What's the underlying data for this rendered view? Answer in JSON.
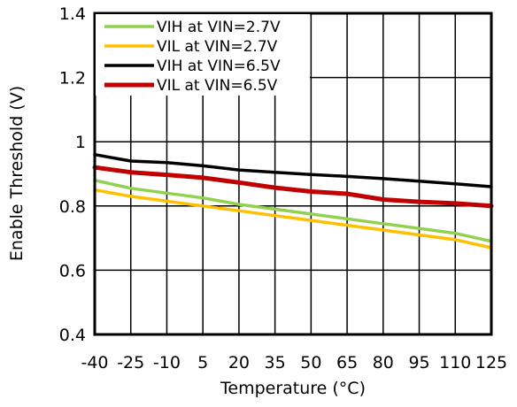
{
  "chart_data": {
    "type": "line",
    "xlabel": "Temperature (°C)",
    "ylabel": "Enable Threshold (V)",
    "x": [
      -40,
      -25,
      -10,
      5,
      20,
      35,
      50,
      65,
      80,
      95,
      110,
      125
    ],
    "x_ticks": [
      "-40",
      "-25",
      "-10",
      "5",
      "20",
      "35",
      "50",
      "65",
      "80",
      "95",
      "110",
      "125"
    ],
    "y_ticks": [
      "0.4",
      "0.6",
      "0.8",
      "1",
      "1.2",
      "1.4"
    ],
    "xlim": [
      -40,
      125
    ],
    "ylim": [
      0.4,
      1.4
    ],
    "grid": true,
    "legend_position": "top-left",
    "series": [
      {
        "name": "VIH at VIN=2.7V",
        "color": "#92d050",
        "values": [
          0.88,
          0.855,
          0.84,
          0.825,
          0.805,
          0.79,
          0.775,
          0.76,
          0.745,
          0.73,
          0.715,
          0.69
        ]
      },
      {
        "name": "VIL at VIN=2.7V",
        "color": "#ffc000",
        "values": [
          0.85,
          0.83,
          0.815,
          0.8,
          0.785,
          0.77,
          0.755,
          0.74,
          0.725,
          0.71,
          0.695,
          0.67
        ]
      },
      {
        "name": "VIH at VIN=6.5V",
        "color": "#000000",
        "values": [
          0.96,
          0.94,
          0.935,
          0.925,
          0.912,
          0.905,
          0.898,
          0.892,
          0.885,
          0.877,
          0.869,
          0.86
        ]
      },
      {
        "name": "VIL at VIN=6.5V",
        "color": "#c00000",
        "values": [
          0.92,
          0.905,
          0.897,
          0.888,
          0.873,
          0.857,
          0.845,
          0.838,
          0.82,
          0.813,
          0.808,
          0.8
        ]
      }
    ]
  }
}
